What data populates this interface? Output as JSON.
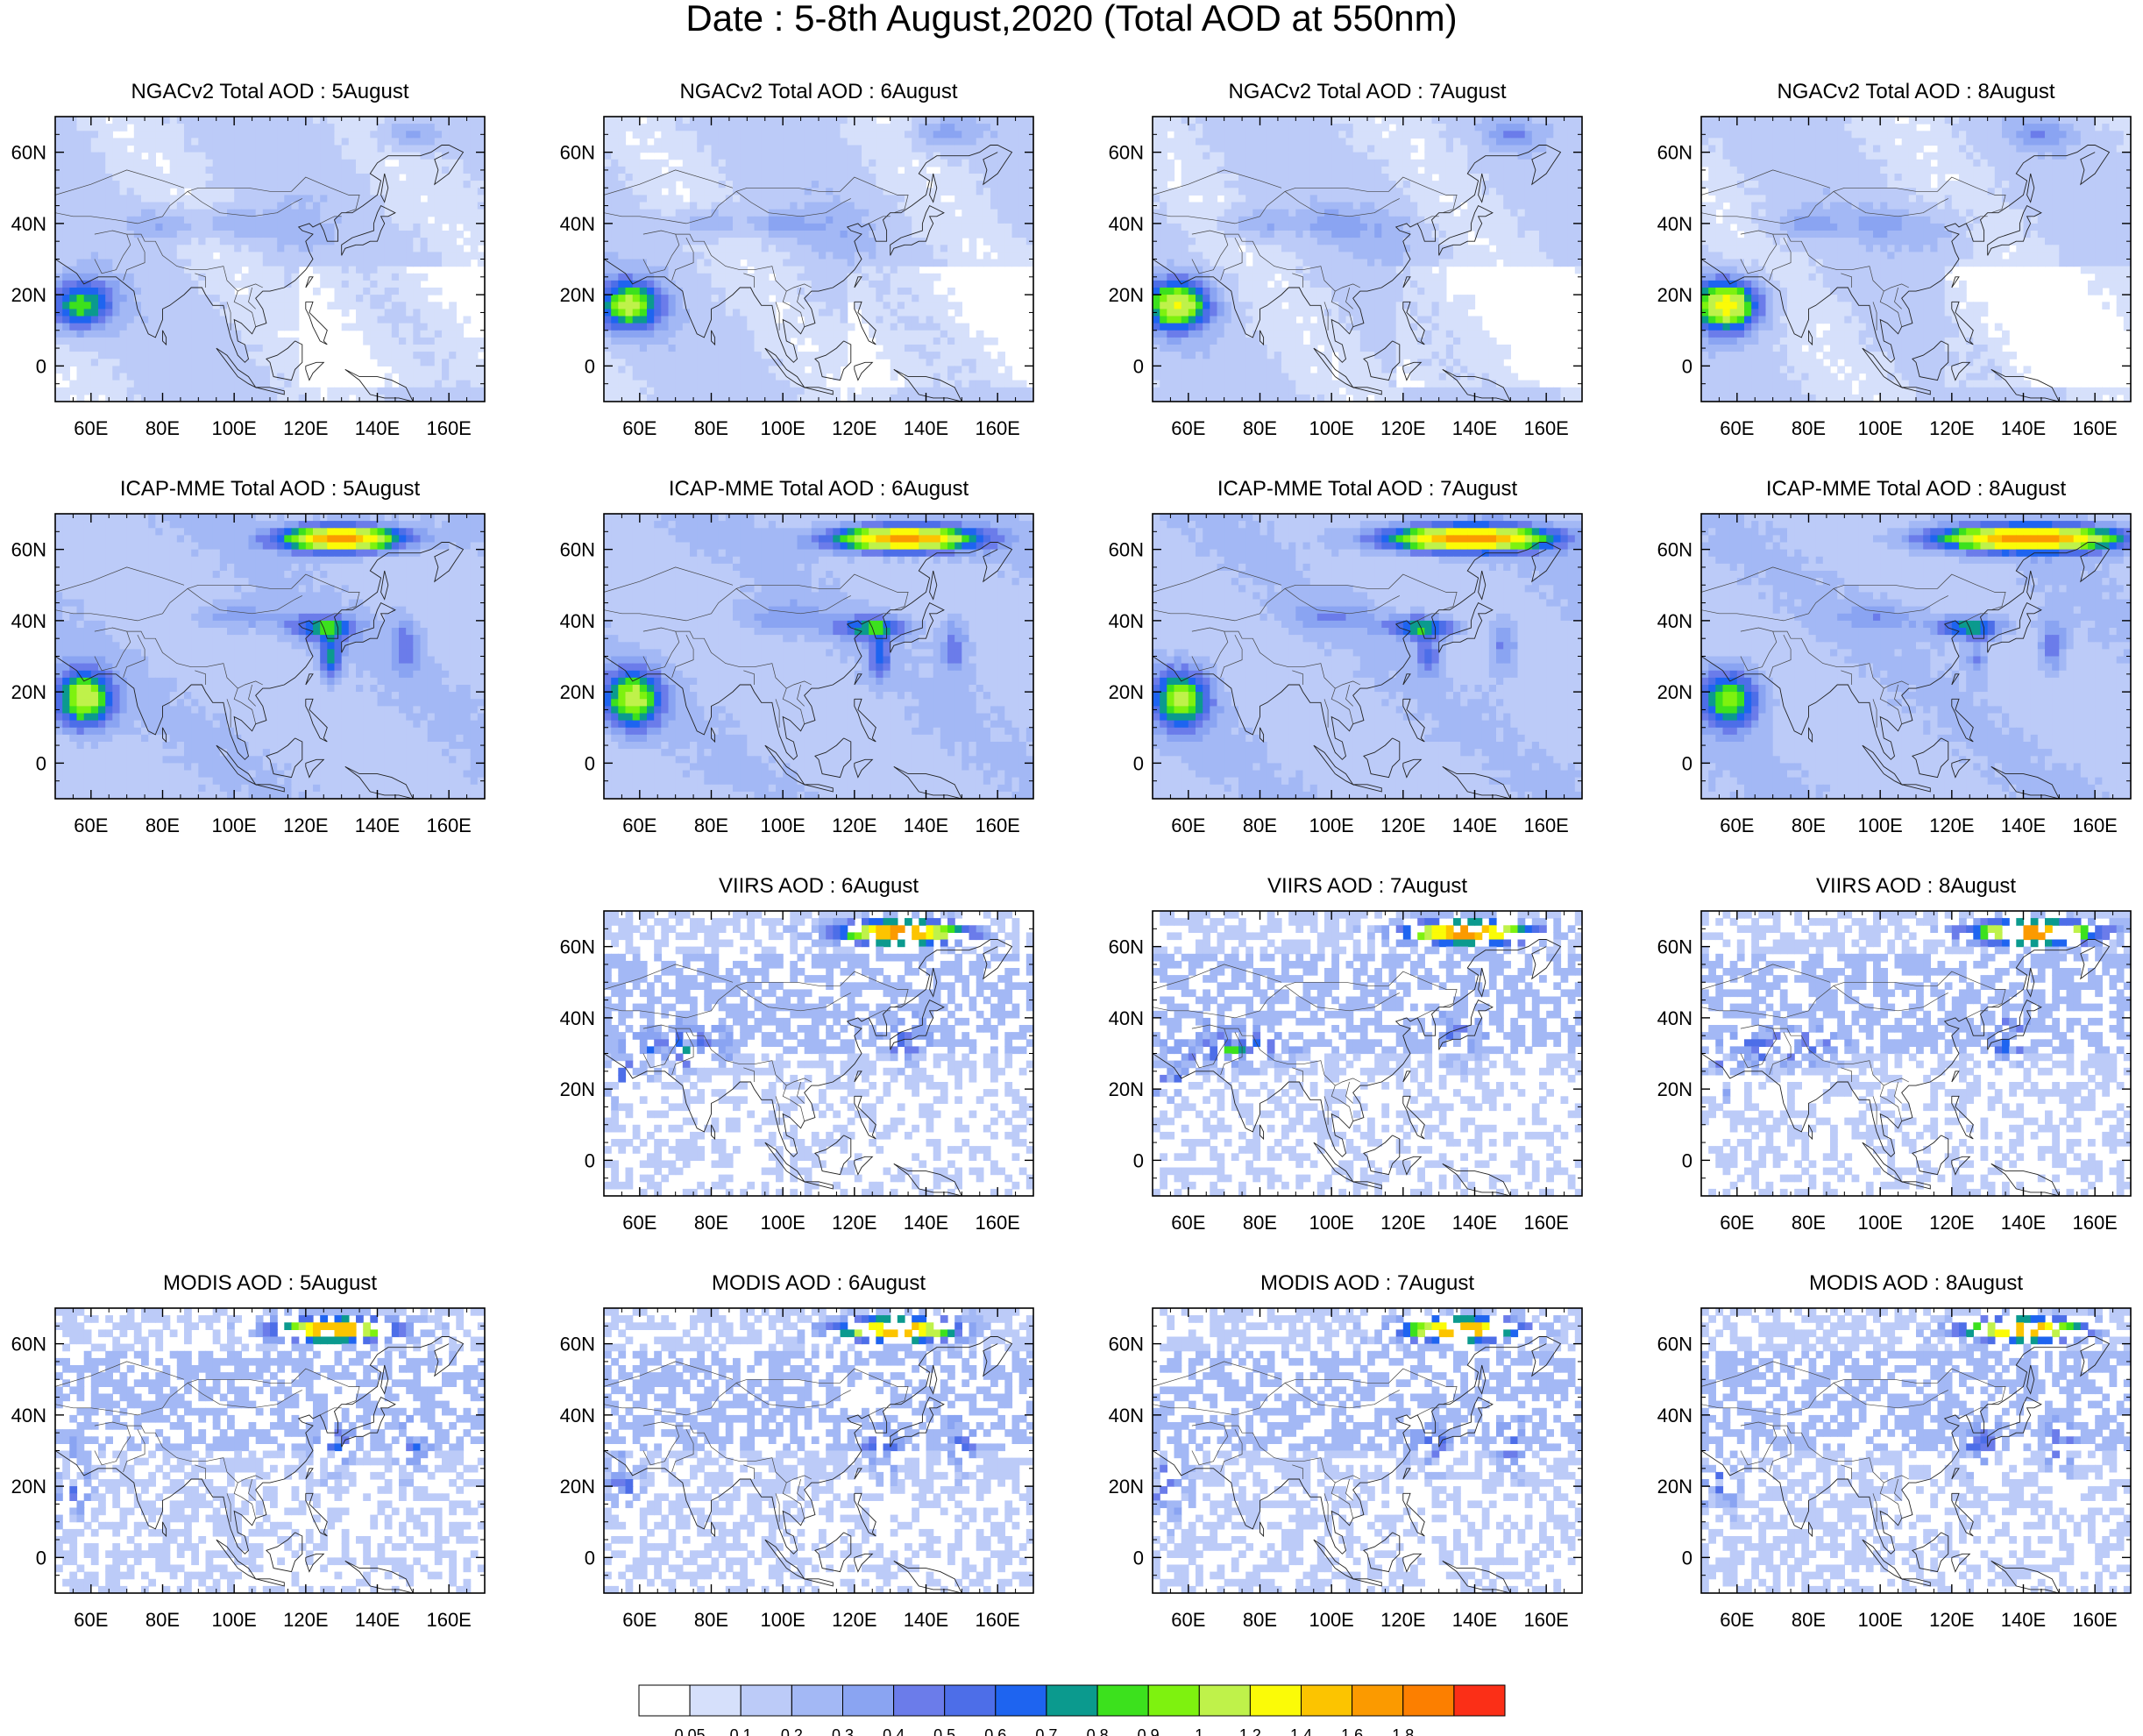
{
  "title": "Date : 5-8th August,2020 (Total AOD at 550nm)",
  "map": {
    "lon_range": [
      50,
      170
    ],
    "lat_range": [
      -10,
      70
    ],
    "lon_ticks": [
      "60E",
      "80E",
      "100E",
      "120E",
      "140E",
      "160E"
    ],
    "lat_ticks": [
      "0",
      "20N",
      "40N",
      "60N"
    ]
  },
  "panels": [
    {
      "title": "NGACv2 Total AOD : 5August",
      "product": "NGACv2",
      "day": "5August"
    },
    {
      "title": "NGACv2 Total AOD : 6August",
      "product": "NGACv2",
      "day": "6August"
    },
    {
      "title": "NGACv2 Total AOD : 7August",
      "product": "NGACv2",
      "day": "7August"
    },
    {
      "title": "NGACv2 Total AOD : 8August",
      "product": "NGACv2",
      "day": "8August"
    },
    {
      "title": "ICAP-MME Total AOD : 5August",
      "product": "ICAP-MME",
      "day": "5August"
    },
    {
      "title": "ICAP-MME Total AOD : 6August",
      "product": "ICAP-MME",
      "day": "6August"
    },
    {
      "title": "ICAP-MME Total AOD : 7August",
      "product": "ICAP-MME",
      "day": "7August"
    },
    {
      "title": "ICAP-MME Total AOD : 8August",
      "product": "ICAP-MME",
      "day": "8August"
    },
    null,
    {
      "title": "VIIRS AOD : 6August",
      "product": "VIIRS",
      "day": "6August"
    },
    {
      "title": "VIIRS AOD : 7August",
      "product": "VIIRS",
      "day": "7August"
    },
    {
      "title": "VIIRS AOD : 8August",
      "product": "VIIRS",
      "day": "8August"
    },
    {
      "title": "MODIS AOD : 5August",
      "product": "MODIS",
      "day": "5August"
    },
    {
      "title": "MODIS AOD : 6August",
      "product": "MODIS",
      "day": "6August"
    },
    {
      "title": "MODIS AOD : 7August",
      "product": "MODIS",
      "day": "7August"
    },
    {
      "title": "MODIS AOD : 8August",
      "product": "MODIS",
      "day": "8August"
    }
  ],
  "colorbar": {
    "labels": [
      "0.05",
      "0.1",
      "0.2",
      "0.3",
      "0.4",
      "0.5",
      "0.6",
      "0.7",
      "0.8",
      "0.9",
      "1",
      "1.2",
      "1.4",
      "1.6",
      "1.8"
    ],
    "colors": [
      "#ffffff",
      "#d6e0fb",
      "#bccbf8",
      "#a3b8f5",
      "#8aa4f2",
      "#6b7cea",
      "#4d6ee8",
      "#1e64f0",
      "#0b9a8e",
      "#3ce11d",
      "#7ef20f",
      "#bff24a",
      "#fbfb07",
      "#fcc400",
      "#fb9a00",
      "#fc7f00",
      "#fb2f17"
    ]
  }
}
